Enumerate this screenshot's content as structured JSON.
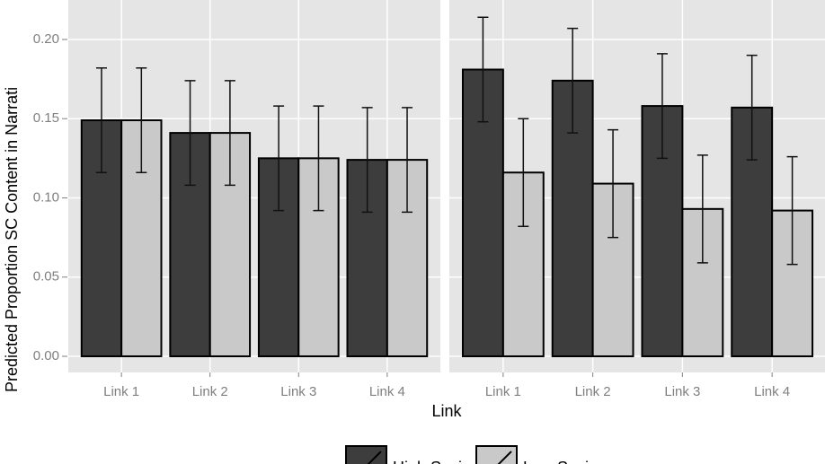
{
  "chart_data": {
    "type": "bar",
    "y_label": "Predicted Proportion SC Content in Narrati",
    "x_label": "Link",
    "ylim": [
      -0.0102,
      0.2249
    ],
    "yticks": [
      {
        "value": 0,
        "label": "0.00"
      },
      {
        "value": 0.05,
        "label": "0.05"
      },
      {
        "value": 0.1,
        "label": "0.10"
      },
      {
        "value": 0.15,
        "label": "0.15"
      },
      {
        "value": 0.2,
        "label": "0.20"
      }
    ],
    "legend": [
      {
        "name": "High Socio",
        "color": "#3d3d3d"
      },
      {
        "name": "Low Socio",
        "color": "#c9c9c9"
      }
    ],
    "panels": [
      {
        "categories": [
          "Link 1",
          "Link 2",
          "Link 3",
          "Link 4"
        ],
        "series": [
          {
            "values": [
              0.149,
              0.141,
              0.125,
              0.124
            ],
            "errors": [
              0.033,
              0.033,
              0.033,
              0.033
            ]
          },
          {
            "values": [
              0.149,
              0.141,
              0.125,
              0.124
            ],
            "errors": [
              0.033,
              0.033,
              0.033,
              0.033
            ]
          }
        ]
      },
      {
        "categories": [
          "Link 1",
          "Link 2",
          "Link 3",
          "Link 4"
        ],
        "series": [
          {
            "values": [
              0.181,
              0.174,
              0.158,
              0.157
            ],
            "errors": [
              0.033,
              0.033,
              0.033,
              0.033
            ]
          },
          {
            "values": [
              0.116,
              0.109,
              0.093,
              0.092
            ],
            "errors": [
              0.034,
              0.034,
              0.034,
              0.034
            ]
          }
        ]
      }
    ]
  }
}
